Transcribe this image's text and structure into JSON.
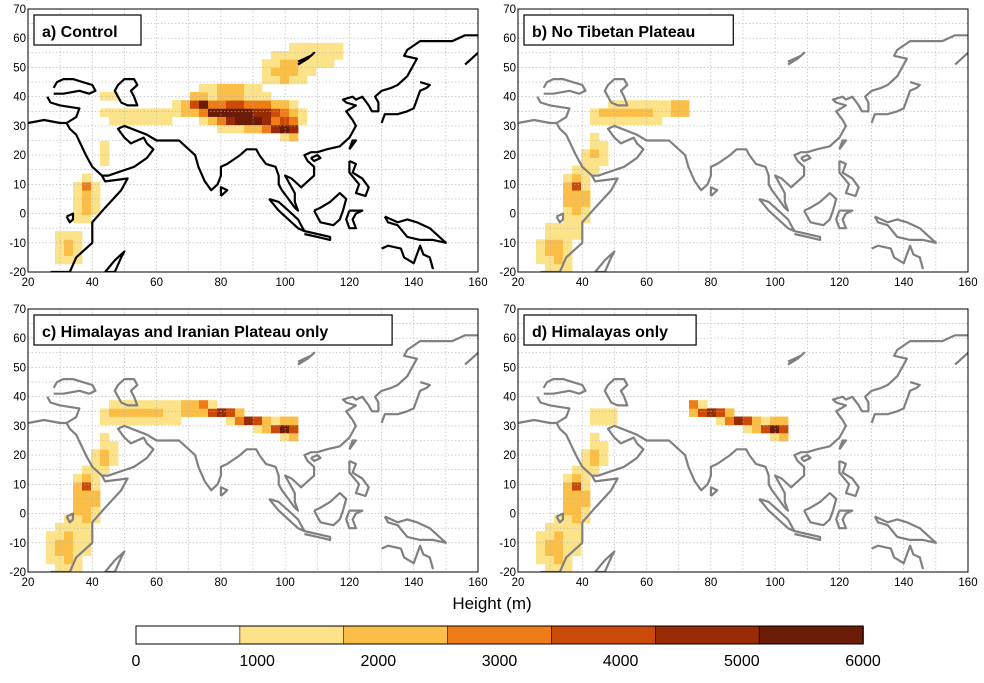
{
  "panels": [
    {
      "id": "a",
      "title": "a) Control",
      "coast_color": "#000000",
      "terrain": "full"
    },
    {
      "id": "b",
      "title": "b) No Tibetan Plateau",
      "coast_color": "#808080",
      "terrain": "no_tibet"
    },
    {
      "id": "c",
      "title": "c) Himalayas and Iranian Plateau only",
      "coast_color": "#808080",
      "terrain": "him_iran"
    },
    {
      "id": "d",
      "title": "d) Himalayas only",
      "coast_color": "#808080",
      "terrain": "him_only"
    }
  ],
  "axes": {
    "x_ticks": [
      "20",
      "40",
      "60",
      "80",
      "100",
      "120",
      "140",
      "160"
    ],
    "y_ticks": [
      "70",
      "60",
      "50",
      "40",
      "30",
      "20",
      "10",
      "0",
      "-10",
      "-20"
    ],
    "lon_range": [
      20,
      160
    ],
    "lat_range": [
      -20,
      70
    ]
  },
  "xlabel": "Height (m)",
  "colorbar": {
    "labels": [
      "0",
      "1000",
      "2000",
      "3000",
      "4000",
      "5000",
      "6000"
    ],
    "colors": [
      "#ffffff",
      "#fce38a",
      "#fbbf48",
      "#ee7d18",
      "#cc4a08",
      "#982a06",
      "#6a1c06"
    ]
  }
}
